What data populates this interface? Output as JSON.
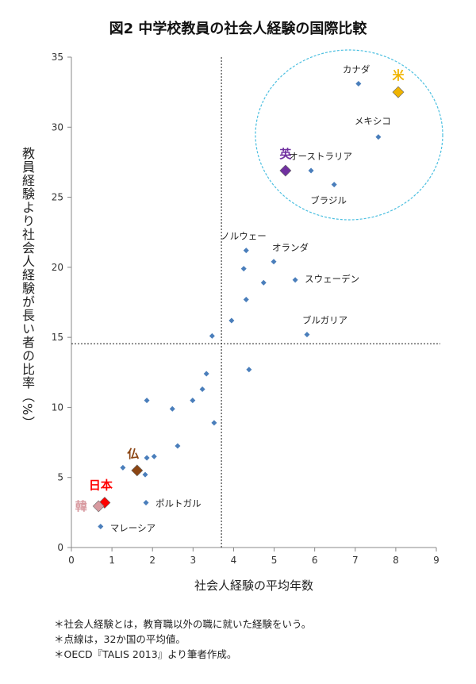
{
  "title": "図2  中学校教員の社会人経験の国際比較",
  "notes": [
    "＊社会人経験とは，教育職以外の職に就いた経験をいう。",
    "＊点線は，32か国の平均値。",
    "＊OECD『TALIS 2013』より筆者作成。"
  ],
  "chart_data": {
    "type": "scatter",
    "title": "図2  中学校教員の社会人経験の国際比較",
    "xlabel": "社会人経験の平均年数",
    "ylabel": "教員経験より社会人経験が長い者の比率（%）",
    "xlim": [
      0,
      9
    ],
    "ylim": [
      0,
      35
    ],
    "xticks": [
      0,
      1,
      2,
      3,
      4,
      5,
      6,
      7,
      8,
      9
    ],
    "yticks": [
      0,
      5,
      10,
      15,
      20,
      25,
      30,
      35
    ],
    "grid": false,
    "mean_lines": {
      "x": 3.7,
      "y": 14.55,
      "style": "dotted"
    },
    "highlight_ellipse": {
      "color": "#4bbfe0",
      "style": "dashed"
    },
    "default_color": "#4a7ebb",
    "points": [
      {
        "label": "カナダ",
        "x": 7.08,
        "y": 33.1
      },
      {
        "label": "米",
        "x": 8.06,
        "y": 32.5,
        "highlight": true,
        "color": "#f0b400"
      },
      {
        "label": "メキシコ",
        "x": 7.57,
        "y": 29.3
      },
      {
        "label": "オーストラリア",
        "x": 5.91,
        "y": 26.9
      },
      {
        "label": "英",
        "x": 5.28,
        "y": 26.9,
        "highlight": true,
        "color": "#7030a0"
      },
      {
        "label": "ブラジル",
        "x": 6.48,
        "y": 25.9
      },
      {
        "label": "ノルウェー",
        "x": 4.31,
        "y": 21.2
      },
      {
        "label": "オランダ",
        "x": 4.99,
        "y": 20.4
      },
      {
        "label": "",
        "x": 4.25,
        "y": 19.9
      },
      {
        "label": "スウェーデン",
        "x": 5.52,
        "y": 19.1
      },
      {
        "label": "",
        "x": 4.74,
        "y": 18.9
      },
      {
        "label": "",
        "x": 4.31,
        "y": 17.7
      },
      {
        "label": "",
        "x": 3.95,
        "y": 16.2
      },
      {
        "label": "ブルガリア",
        "x": 5.81,
        "y": 15.2
      },
      {
        "label": "",
        "x": 3.47,
        "y": 15.1
      },
      {
        "label": "",
        "x": 4.38,
        "y": 12.7
      },
      {
        "label": "",
        "x": 3.33,
        "y": 12.4
      },
      {
        "label": "",
        "x": 3.23,
        "y": 11.3
      },
      {
        "label": "",
        "x": 1.86,
        "y": 10.5
      },
      {
        "label": "",
        "x": 2.99,
        "y": 10.5
      },
      {
        "label": "",
        "x": 2.49,
        "y": 9.9
      },
      {
        "label": "",
        "x": 3.52,
        "y": 8.9
      },
      {
        "label": "",
        "x": 2.62,
        "y": 7.25
      },
      {
        "label": "",
        "x": 1.86,
        "y": 6.4
      },
      {
        "label": "",
        "x": 2.04,
        "y": 6.5
      },
      {
        "label": "",
        "x": 1.27,
        "y": 5.7
      },
      {
        "label": "仏",
        "x": 1.62,
        "y": 5.5,
        "highlight": true,
        "color": "#8b4513"
      },
      {
        "label": "",
        "x": 1.82,
        "y": 5.2
      },
      {
        "label": "日本",
        "x": 0.82,
        "y": 3.2,
        "highlight": true,
        "color": "#ff0000"
      },
      {
        "label": "韓",
        "x": 0.67,
        "y": 2.95,
        "highlight": true,
        "color": "#d89aa0"
      },
      {
        "label": "ポルトガル",
        "x": 1.84,
        "y": 3.2
      },
      {
        "label": "マレーシア",
        "x": 0.72,
        "y": 1.5
      }
    ]
  }
}
